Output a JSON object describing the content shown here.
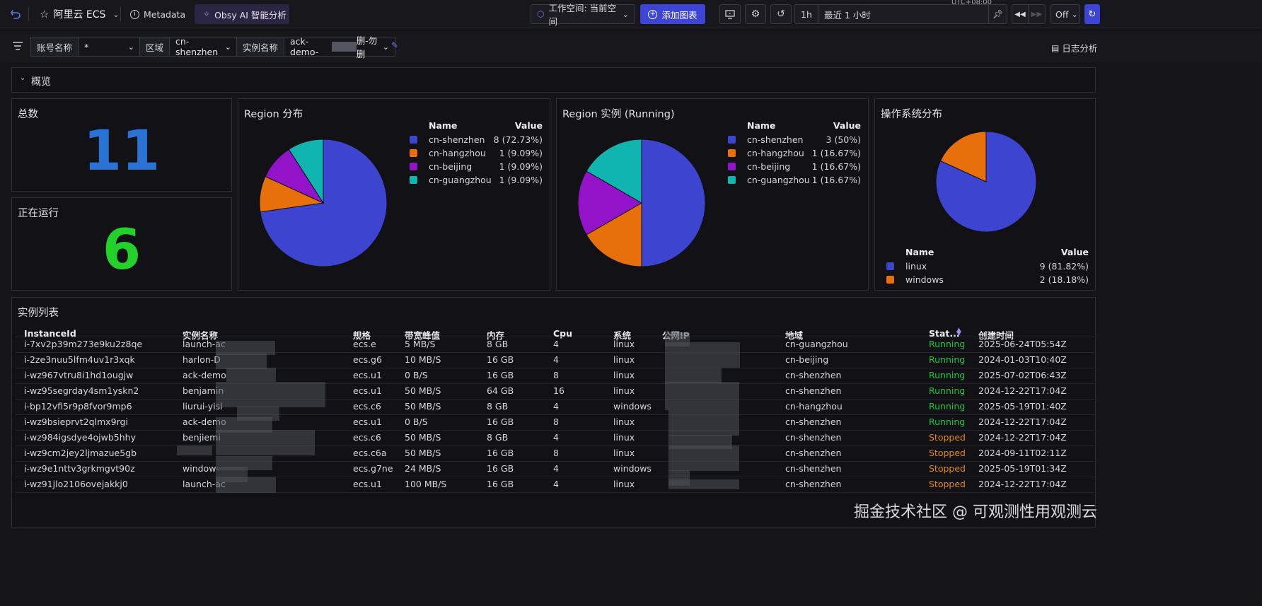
{
  "topbar": {
    "title": "阿里云 ECS",
    "metadata_label": "Metadata",
    "ai_label": "Obsy AI 智能分析",
    "workspace_label": "工作空间: 当前空间",
    "add_chart_label": "添加图表",
    "timezone": "UTC+08:00",
    "range_short": "1h",
    "range_label": "最近 1 小时",
    "refresh_label": "Off"
  },
  "filters": {
    "account_label": "账号名称",
    "account_value": "*",
    "region_label": "区域",
    "region_value": "cn-shenzhen",
    "instance_label": "实例名称",
    "instance_value": "ack-demo-",
    "instance_value_suffix": "删-勿删",
    "log_analysis_label": "日志分析"
  },
  "overview": {
    "label": "概览"
  },
  "stats": {
    "total_label": "总数",
    "total_value": "11",
    "running_label": "正在运行",
    "running_value": "6"
  },
  "colors": {
    "blue": "#3d45d0",
    "orange": "#e8700a",
    "purple": "#9313c8",
    "teal": "#11b5b0",
    "total": "#2a73d4",
    "running": "#22d22b",
    "status_running": "#22c53a",
    "status_stopped": "#e08a1a"
  },
  "legend_headers": {
    "name": "Name",
    "value": "Value"
  },
  "chart_data": [
    {
      "type": "pie",
      "title": "Region 分布",
      "labels": [
        "cn-shenzhen",
        "cn-hangzhou",
        "cn-beijing",
        "cn-guangzhou"
      ],
      "values": [
        8,
        1,
        1,
        1
      ],
      "display": [
        "8 (72.73%)",
        "1 (9.09%)",
        "1 (9.09%)",
        "1 (9.09%)"
      ]
    },
    {
      "type": "pie",
      "title": "Region 实例 (Running)",
      "labels": [
        "cn-shenzhen",
        "cn-hangzhou",
        "cn-beijing",
        "cn-guangzhou"
      ],
      "values": [
        3,
        1,
        1,
        1
      ],
      "display": [
        "3 (50%)",
        "1 (16.67%)",
        "1 (16.67%)",
        "1 (16.67%)"
      ]
    },
    {
      "type": "pie",
      "title": "操作系统分布",
      "labels": [
        "linux",
        "windows"
      ],
      "values": [
        9,
        2
      ],
      "display": [
        "9 (81.82%)",
        "2 (18.18%)"
      ]
    }
  ],
  "table": {
    "title": "实例列表",
    "columns": [
      "InstanceId",
      "实例名称",
      "规格",
      "带宽峰值",
      "内存",
      "Cpu",
      "系统",
      "公网IP",
      "地域",
      "Stat...",
      "创建时间"
    ],
    "rows": [
      {
        "id": "i-7xv2p39m273e9ku2z8qe",
        "name": "launch-ac",
        "spec": "ecs.e",
        "bw": "5 MB/S",
        "mem": "8 GB",
        "cpu": "4",
        "os": "linux",
        "ip": "",
        "region": "cn-guangzhou",
        "status": "Running",
        "created": "2025-06-24T05:54Z"
      },
      {
        "id": "i-2ze3nuu5lfm4uv1r3xqk",
        "name": "harlon-D",
        "spec": "ecs.g6",
        "bw": "10 MB/S",
        "mem": "16 GB",
        "cpu": "4",
        "os": "linux",
        "ip": "",
        "region": "cn-beijing",
        "status": "Running",
        "created": "2024-01-03T10:40Z"
      },
      {
        "id": "i-wz967vtru8i1hd1ougjw",
        "name": "ack-demo",
        "spec": "ecs.u1",
        "bw": "0 B/S",
        "mem": "16 GB",
        "cpu": "8",
        "os": "linux",
        "ip": "",
        "region": "cn-shenzhen",
        "status": "Running",
        "created": "2025-07-02T06:43Z"
      },
      {
        "id": "i-wz95segrday4sm1yskn2",
        "name": "benjamin",
        "spec": "ecs.u1",
        "bw": "50 MB/S",
        "mem": "64 GB",
        "cpu": "16",
        "os": "linux",
        "ip": "",
        "region": "cn-shenzhen",
        "status": "Running",
        "created": "2024-12-22T17:04Z"
      },
      {
        "id": "i-bp12vfi5r9p8fvor9mp6",
        "name": "liurui-yisl",
        "spec": "ecs.c6",
        "bw": "50 MB/S",
        "mem": "8 GB",
        "cpu": "4",
        "os": "windows",
        "ip": "",
        "region": "cn-hangzhou",
        "status": "Running",
        "created": "2025-05-19T01:40Z"
      },
      {
        "id": "i-wz9bsieprvt2qlmx9rgi",
        "name": "ack-demo",
        "spec": "ecs.u1",
        "bw": "0 B/S",
        "mem": "16 GB",
        "cpu": "8",
        "os": "linux",
        "ip": "",
        "region": "cn-shenzhen",
        "status": "Running",
        "created": "2024-12-22T17:04Z"
      },
      {
        "id": "i-wz984igsdye4ojwb5hhy",
        "name": "benjiemi",
        "spec": "ecs.c6",
        "bw": "50 MB/S",
        "mem": "8 GB",
        "cpu": "4",
        "os": "linux",
        "ip": "",
        "region": "cn-shenzhen",
        "status": "Stopped",
        "created": "2024-12-22T17:04Z"
      },
      {
        "id": "i-wz9cm2jey2ljmazue5gb",
        "name": "",
        "spec": "ecs.c6a",
        "bw": "50 MB/S",
        "mem": "16 GB",
        "cpu": "8",
        "os": "linux",
        "ip": "",
        "region": "cn-shenzhen",
        "status": "Stopped",
        "created": "2024-09-11T02:11Z"
      },
      {
        "id": "i-wz9e1nttv3grkmgvt90z",
        "name": "window-",
        "spec": "ecs.g7ne",
        "bw": "24 MB/S",
        "mem": "16 GB",
        "cpu": "4",
        "os": "windows",
        "ip": "",
        "region": "cn-shenzhen",
        "status": "Stopped",
        "created": "2025-05-19T01:34Z"
      },
      {
        "id": "i-wz91jlo2106ovejakkj0",
        "name": "launch-ac",
        "spec": "ecs.u1",
        "bw": "100 MB/S",
        "mem": "16 GB",
        "cpu": "4",
        "os": "linux",
        "ip": "",
        "region": "cn-shenzhen",
        "status": "Stopped",
        "created": "2024-12-22T17:04Z"
      }
    ]
  },
  "watermark": "掘金技术社区 @ 可观测性用观测云"
}
